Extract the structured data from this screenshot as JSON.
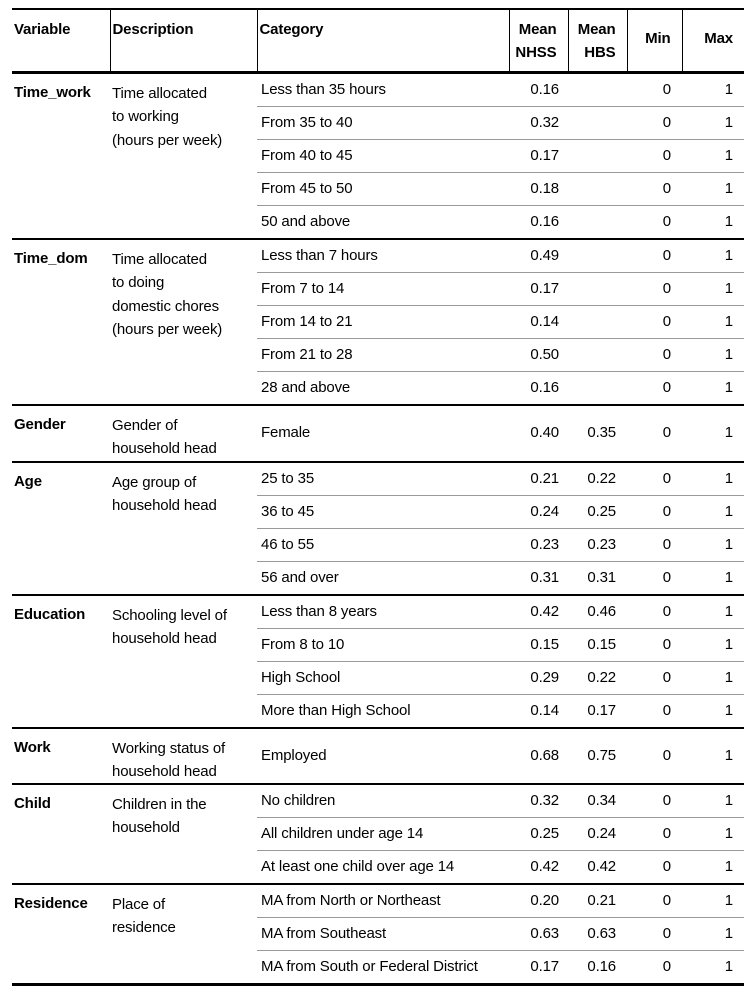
{
  "table": {
    "columns": [
      {
        "key": "variable",
        "label_lines": [
          "Variable"
        ]
      },
      {
        "key": "description",
        "label_lines": [
          "Description"
        ]
      },
      {
        "key": "category",
        "label_lines": [
          "Category"
        ]
      },
      {
        "key": "mean_nhss",
        "label_lines": [
          "Mean",
          "NHSS"
        ]
      },
      {
        "key": "mean_hbs",
        "label_lines": [
          "Mean",
          "HBS"
        ]
      },
      {
        "key": "min",
        "label_lines": [
          "Min"
        ]
      },
      {
        "key": "max",
        "label_lines": [
          "Max"
        ]
      }
    ],
    "groups": [
      {
        "variable": "Time_work",
        "description": "Time allocated\nto working\n(hours per week)",
        "rows": [
          {
            "category": "Less than 35 hours",
            "mean_nhss": "0.16",
            "mean_hbs": "",
            "min": "0",
            "max": "1"
          },
          {
            "category": "From 35 to 40",
            "mean_nhss": "0.32",
            "mean_hbs": "",
            "min": "0",
            "max": "1"
          },
          {
            "category": "From 40 to 45",
            "mean_nhss": "0.17",
            "mean_hbs": "",
            "min": "0",
            "max": "1"
          },
          {
            "category": "From 45 to 50",
            "mean_nhss": "0.18",
            "mean_hbs": "",
            "min": "0",
            "max": "1"
          },
          {
            "category": "50 and above",
            "mean_nhss": "0.16",
            "mean_hbs": "",
            "min": "0",
            "max": "1"
          }
        ]
      },
      {
        "variable": "Time_dom",
        "description": "Time allocated\nto doing\ndomestic chores\n(hours per week)",
        "rows": [
          {
            "category": "Less than 7 hours",
            "mean_nhss": "0.49",
            "mean_hbs": "",
            "min": "0",
            "max": "1"
          },
          {
            "category": "From 7 to 14",
            "mean_nhss": "0.17",
            "mean_hbs": "",
            "min": "0",
            "max": "1"
          },
          {
            "category": "From 14 to 21",
            "mean_nhss": "0.14",
            "mean_hbs": "",
            "min": "0",
            "max": "1"
          },
          {
            "category": "From 21 to 28",
            "mean_nhss": "0.50",
            "mean_hbs": "",
            "min": "0",
            "max": "1"
          },
          {
            "category": "28 and above",
            "mean_nhss": "0.16",
            "mean_hbs": "",
            "min": "0",
            "max": "1"
          }
        ]
      },
      {
        "variable": "Gender",
        "description": "Gender of\nhousehold head",
        "rows": [
          {
            "category": "Female",
            "mean_nhss": "0.40",
            "mean_hbs": "0.35",
            "min": "0",
            "max": "1"
          }
        ]
      },
      {
        "variable": "Age",
        "description": "Age group of\nhousehold head",
        "rows": [
          {
            "category": "25 to 35",
            "mean_nhss": "0.21",
            "mean_hbs": "0.22",
            "min": "0",
            "max": "1"
          },
          {
            "category": "36 to 45",
            "mean_nhss": "0.24",
            "mean_hbs": "0.25",
            "min": "0",
            "max": "1"
          },
          {
            "category": "46 to 55",
            "mean_nhss": "0.23",
            "mean_hbs": "0.23",
            "min": "0",
            "max": "1"
          },
          {
            "category": "56 and over",
            "mean_nhss": "0.31",
            "mean_hbs": "0.31",
            "min": "0",
            "max": "1"
          }
        ]
      },
      {
        "variable": "Education",
        "description": "Schooling level of\nhousehold head",
        "rows": [
          {
            "category": "Less than 8 years",
            "mean_nhss": "0.42",
            "mean_hbs": "0.46",
            "min": "0",
            "max": "1"
          },
          {
            "category": "From 8 to 10",
            "mean_nhss": "0.15",
            "mean_hbs": "0.15",
            "min": "0",
            "max": "1"
          },
          {
            "category": "High School",
            "mean_nhss": "0.29",
            "mean_hbs": "0.22",
            "min": "0",
            "max": "1"
          },
          {
            "category": "More than High School",
            "mean_nhss": "0.14",
            "mean_hbs": "0.17",
            "min": "0",
            "max": "1"
          }
        ]
      },
      {
        "variable": "Work",
        "description": "Working status of\nhousehold head",
        "rows": [
          {
            "category": "Employed",
            "mean_nhss": "0.68",
            "mean_hbs": "0.75",
            "min": "0",
            "max": "1"
          }
        ]
      },
      {
        "variable": "Child",
        "description": "Children in the\nhousehold",
        "rows": [
          {
            "category": "No children",
            "mean_nhss": "0.32",
            "mean_hbs": "0.34",
            "min": "0",
            "max": "1"
          },
          {
            "category": "All children under age 14",
            "mean_nhss": "0.25",
            "mean_hbs": "0.24",
            "min": "0",
            "max": "1"
          },
          {
            "category": "At least one child over age 14",
            "mean_nhss": "0.42",
            "mean_hbs": "0.42",
            "min": "0",
            "max": "1"
          }
        ]
      },
      {
        "variable": "Residence",
        "description": "Place of\nresidence",
        "rows": [
          {
            "category": "MA from North or Northeast",
            "mean_nhss": "0.20",
            "mean_hbs": "0.21",
            "min": "0",
            "max": "1"
          },
          {
            "category": "MA from Southeast",
            "mean_nhss": "0.63",
            "mean_hbs": "0.63",
            "min": "0",
            "max": "1"
          },
          {
            "category": "MA from South or Federal District",
            "mean_nhss": "0.17",
            "mean_hbs": "0.16",
            "min": "0",
            "max": "1"
          }
        ]
      }
    ]
  }
}
